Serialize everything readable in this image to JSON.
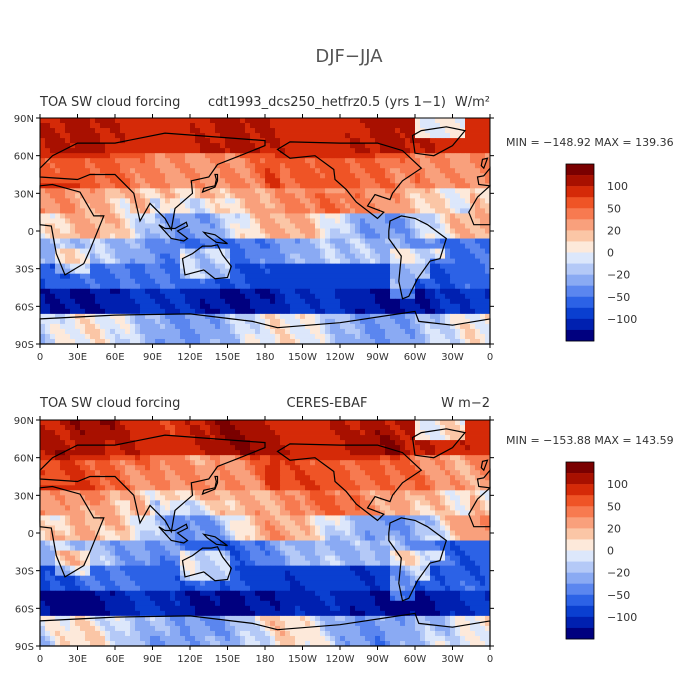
{
  "figure": {
    "title": "DJF−JJA"
  },
  "colorscale": {
    "colors": [
      "#00007f",
      "#0020b0",
      "#0a3fd0",
      "#2c62e6",
      "#5b86ef",
      "#8aaaf3",
      "#b4c9f7",
      "#dce7fb",
      "#fde9da",
      "#fbc6a6",
      "#f9a07c",
      "#f77a50",
      "#ef5426",
      "#d52a08",
      "#a81000",
      "#7a0000"
    ],
    "tick_labels": [
      "100",
      "50",
      "20",
      "0",
      "−20",
      "−50",
      "−100"
    ]
  },
  "panels": [
    {
      "id": "model",
      "title_left": "TOA SW cloud forcing",
      "title_center": "cdt1993_dcs250_hetfrz0.5 (yrs 1−1)",
      "units": "W/m²",
      "stats": "MIN = −148.92  MAX = 139.36"
    },
    {
      "id": "obs",
      "title_left": "TOA SW cloud forcing",
      "title_center": "CERES-EBAF",
      "units": "W m−2",
      "stats": "MIN = −153.88  MAX = 143.59"
    }
  ],
  "axes": {
    "lat_labels": [
      "90N",
      "60N",
      "30N",
      "0",
      "30S",
      "60S",
      "90S"
    ],
    "lon_labels": [
      "0",
      "30E",
      "60E",
      "90E",
      "120E",
      "150E",
      "180",
      "150W",
      "120W",
      "90W",
      "60W",
      "30W",
      "0"
    ]
  },
  "chart_data": [
    {
      "type": "heatmap",
      "title": "TOA SW cloud forcing cdt1993_dcs250_hetfrz0.5 (yrs 1−1)",
      "units": "W/m²",
      "x": [
        "0",
        "30E",
        "60E",
        "90E",
        "120E",
        "150E",
        "180",
        "150W",
        "120W",
        "90W",
        "60W",
        "30W",
        "0"
      ],
      "y": [
        "90N",
        "60N",
        "30N",
        "0",
        "30S",
        "60S",
        "90S"
      ],
      "min": -148.92,
      "max": 139.36,
      "contour_levels": [
        -120,
        -100,
        -80,
        -60,
        -50,
        -40,
        -30,
        -20,
        -10,
        0,
        10,
        20,
        30,
        40,
        50,
        60,
        80,
        100,
        120
      ],
      "zonal_pattern": [
        {
          "band": "90N-60N",
          "approx": 100
        },
        {
          "band": "60N-30N",
          "approx": 60
        },
        {
          "band": "30N-0",
          "approx": 10
        },
        {
          "band": "0-30S",
          "approx": -40
        },
        {
          "band": "30S-60S",
          "approx": -100
        },
        {
          "band": "60S-90S",
          "approx": -10
        }
      ]
    },
    {
      "type": "heatmap",
      "title": "TOA SW cloud forcing CERES-EBAF",
      "units": "W m−2",
      "x": [
        "0",
        "30E",
        "60E",
        "90E",
        "120E",
        "150E",
        "180",
        "150W",
        "120W",
        "90W",
        "60W",
        "30W",
        "0"
      ],
      "y": [
        "90N",
        "60N",
        "30N",
        "0",
        "30S",
        "60S",
        "90S"
      ],
      "min": -153.88,
      "max": 143.59,
      "contour_levels": [
        -120,
        -100,
        -80,
        -60,
        -50,
        -40,
        -30,
        -20,
        -10,
        0,
        10,
        20,
        30,
        40,
        50,
        60,
        80,
        100,
        120
      ],
      "zonal_pattern": [
        {
          "band": "90N-60N",
          "approx": 80
        },
        {
          "band": "60N-30N",
          "approx": 70
        },
        {
          "band": "30N-0",
          "approx": 20
        },
        {
          "band": "0-30S",
          "approx": -30
        },
        {
          "band": "30S-60S",
          "approx": -110
        },
        {
          "band": "60S-90S",
          "approx": 0
        }
      ]
    }
  ]
}
